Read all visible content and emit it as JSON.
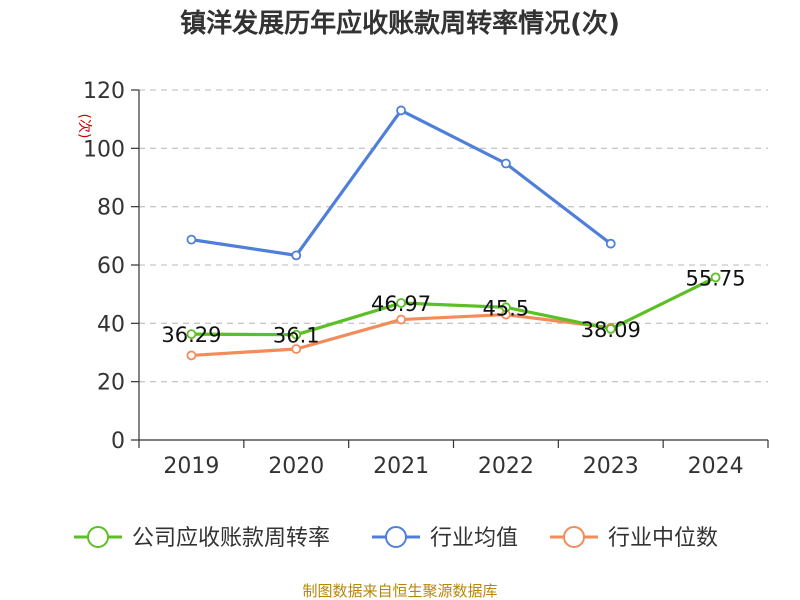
{
  "chart_data": {
    "type": "line",
    "title": "镇洋发展历年应收账款周转率情况(次)",
    "ylabel": "(次)",
    "ylim": [
      0,
      120
    ],
    "yticks": [
      0,
      20,
      40,
      60,
      80,
      100,
      120
    ],
    "categories": [
      "2019",
      "2020",
      "2021",
      "2022",
      "2023",
      "2024"
    ],
    "grid": true,
    "legend_position": "bottom",
    "series": [
      {
        "name": "公司应收账款周转率",
        "color": "#5cbf26",
        "values": [
          36.29,
          36.1,
          46.97,
          45.5,
          38.09,
          55.75
        ],
        "labels": [
          "36.29",
          "36.1",
          "46.97",
          "45.5",
          "38.09",
          "55.75"
        ]
      },
      {
        "name": "行业均值",
        "color": "#4f7fd9",
        "values": [
          68.7,
          63.3,
          113,
          94.8,
          67.3,
          null
        ]
      },
      {
        "name": "行业中位数",
        "color": "#f28c5a",
        "values": [
          29,
          31.2,
          41.3,
          43,
          38.5,
          null
        ]
      }
    ],
    "source": "制图数据来自恒生聚源数据库"
  }
}
